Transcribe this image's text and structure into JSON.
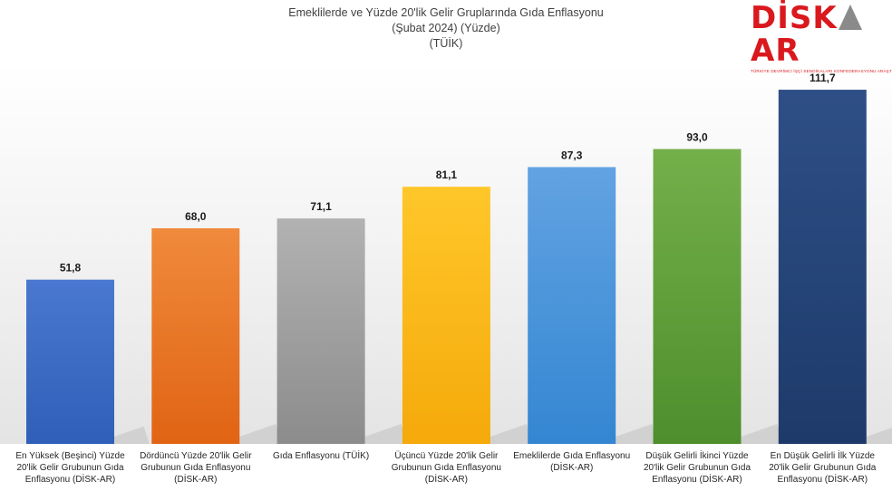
{
  "logo": {
    "text_left": "DİSK",
    "text_right": "AR",
    "tagline": "TÜRKİYE DEVRİMCİ İŞÇİ SENDİKALARI KONFEDERASYONU ARAŞTIRMA MERKEZİ"
  },
  "chart_data": {
    "type": "bar",
    "title": "Emeklilerde ve Yüzde 20'lik Gelir Gruplarında Gıda Enflasyonu",
    "subtitle": "(Şubat 2024) (Yüzde)",
    "source": "(TÜİK)",
    "categories": [
      "En Yüksek (Beşinci) Yüzde 20'lik Gelir Grubunun Gıda Enflasyonu (DİSK-AR)",
      "Dördüncü Yüzde 20'lik Gelir Grubunun Gıda Enflasyonu (DİSK-AR)",
      "Gıda Enflasyonu (TÜİK)",
      "Üçüncü Yüzde 20'lik Gelir Grubunun Gıda Enflasyonu (DİSK-AR)",
      "Emeklilerde Gıda Enflasyonu (DİSK-AR)",
      "Düşük Gelirli İkinci Yüzde 20'lik Gelir Grubunun Gıda Enflasyonu (DİSK-AR)",
      "En Düşük Gelirli İlk Yüzde 20'lik Gelir Grubunun Gıda Enflasyonu (DİSK-AR)"
    ],
    "category_lines": [
      [
        "En Yüksek (Beşinci) Yüzde",
        "20'lik Gelir Grubunun Gıda",
        "Enflasyonu (DİSK-AR)"
      ],
      [
        "Dördüncü Yüzde 20'lik Gelir",
        "Grubunun Gıda Enflasyonu",
        "(DİSK-AR)"
      ],
      [
        "Gıda Enflasyonu (TÜİK)"
      ],
      [
        "Üçüncü Yüzde 20'lik Gelir",
        "Grubunun Gıda Enflasyonu",
        "(DİSK-AR)"
      ],
      [
        "Emeklilerde Gıda Enflasyonu",
        "(DİSK-AR)"
      ],
      [
        "Düşük Gelirli İkinci Yüzde",
        "20'lik Gelir Grubunun Gıda",
        "Enflasyonu (DİSK-AR)"
      ],
      [
        "En Düşük Gelirli İlk Yüzde",
        "20'lik Gelir Grubunun Gıda",
        "Enflasyonu (DİSK-AR)"
      ]
    ],
    "values": [
      51.8,
      68.0,
      71.1,
      81.1,
      87.3,
      93.0,
      111.7
    ],
    "value_labels": [
      "51,8",
      "68,0",
      "71,1",
      "81,1",
      "87,3",
      "93,0",
      "111,7"
    ],
    "colors": [
      [
        "#4a78d0",
        "#2f5fb8"
      ],
      [
        "#f08a3c",
        "#e06414"
      ],
      [
        "#b2b2b2",
        "#8c8c8c"
      ],
      [
        "#ffc72a",
        "#f5a90a"
      ],
      [
        "#62a3e2",
        "#3486d2"
      ],
      [
        "#74b04a",
        "#4e8e2c"
      ],
      [
        "#2e4f86",
        "#1d3a6a"
      ]
    ],
    "ylim": [
      0,
      120
    ],
    "grid": false,
    "legend": "none"
  }
}
